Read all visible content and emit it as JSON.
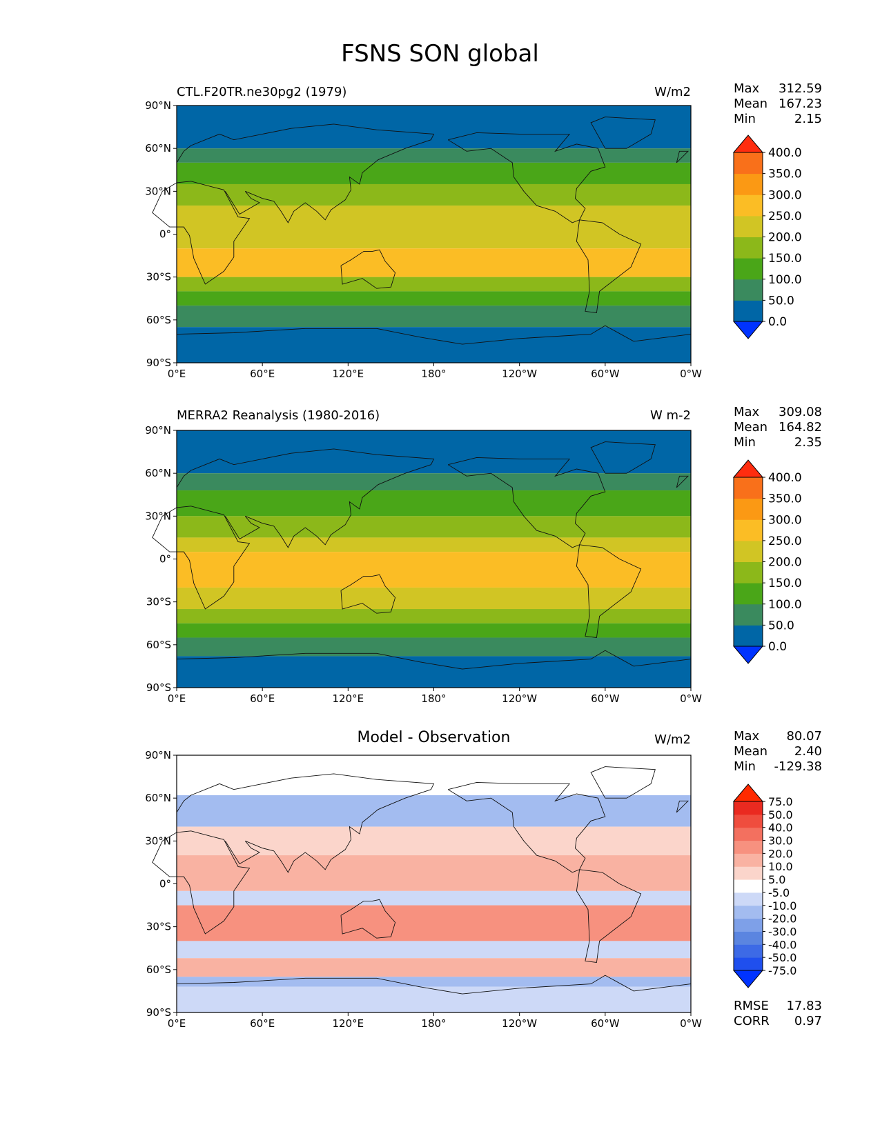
{
  "title": "FSNS SON global",
  "lat_ticks": [
    "90°N",
    "60°N",
    "30°N",
    "0°",
    "30°S",
    "60°S",
    "90°S"
  ],
  "lon_ticks": [
    "0°E",
    "60°E",
    "120°E",
    "180°",
    "120°W",
    "60°W",
    "0°W"
  ],
  "chart_data": [
    {
      "type": "heatmap",
      "name": "test",
      "title_left": "CTL.F20TR.ne30pg2 (1979)",
      "title_right": "W/m2",
      "stats": [
        [
          "Max",
          "312.59"
        ],
        [
          "Mean",
          "167.23"
        ],
        [
          "Min",
          "2.15"
        ]
      ],
      "colorbar": {
        "levels": [
          "0.0",
          "50.0",
          "100.0",
          "150.0",
          "200.0",
          "250.0",
          "300.0",
          "350.0",
          "400.0"
        ],
        "colors": [
          "#0033ff",
          "#0066a6",
          "#3a8a5e",
          "#4aa618",
          "#8cb81a",
          "#d1c524",
          "#fbbd25",
          "#fb9914",
          "#f9701a",
          "#ff2d0f"
        ]
      },
      "bands": [
        {
          "lat": [
            90,
            60
          ],
          "value": 25
        },
        {
          "lat": [
            60,
            50
          ],
          "value": 75
        },
        {
          "lat": [
            50,
            35
          ],
          "value": 125
        },
        {
          "lat": [
            35,
            20
          ],
          "value": 175
        },
        {
          "lat": [
            20,
            -10
          ],
          "value": 225
        },
        {
          "lat": [
            -10,
            -30
          ],
          "value": 255
        },
        {
          "lat": [
            -30,
            -40
          ],
          "value": 175
        },
        {
          "lat": [
            -40,
            -50
          ],
          "value": 125
        },
        {
          "lat": [
            -50,
            -65
          ],
          "value": 75
        },
        {
          "lat": [
            -65,
            -90
          ],
          "value": 25
        }
      ]
    },
    {
      "type": "heatmap",
      "name": "reference",
      "title_left": "MERRA2 Reanalysis (1980-2016)",
      "title_right": "W m-2",
      "stats": [
        [
          "Max",
          "309.08"
        ],
        [
          "Mean",
          "164.82"
        ],
        [
          "Min",
          "2.35"
        ]
      ],
      "colorbar": {
        "levels": [
          "0.0",
          "50.0",
          "100.0",
          "150.0",
          "200.0",
          "250.0",
          "300.0",
          "350.0",
          "400.0"
        ],
        "colors": [
          "#0033ff",
          "#0066a6",
          "#3a8a5e",
          "#4aa618",
          "#8cb81a",
          "#d1c524",
          "#fbbd25",
          "#fb9914",
          "#f9701a",
          "#ff2d0f"
        ]
      },
      "bands": [
        {
          "lat": [
            90,
            60
          ],
          "value": 25
        },
        {
          "lat": [
            60,
            48
          ],
          "value": 75
        },
        {
          "lat": [
            48,
            30
          ],
          "value": 125
        },
        {
          "lat": [
            30,
            15
          ],
          "value": 175
        },
        {
          "lat": [
            15,
            5
          ],
          "value": 200
        },
        {
          "lat": [
            5,
            -20
          ],
          "value": 255
        },
        {
          "lat": [
            -20,
            -35
          ],
          "value": 210
        },
        {
          "lat": [
            -35,
            -45
          ],
          "value": 165
        },
        {
          "lat": [
            -45,
            -55
          ],
          "value": 125
        },
        {
          "lat": [
            -55,
            -68
          ],
          "value": 75
        },
        {
          "lat": [
            -68,
            -90
          ],
          "value": 25
        }
      ]
    },
    {
      "type": "heatmap",
      "name": "difference",
      "title_center": "Model - Observation",
      "title_right": "W/m2",
      "stats": [
        [
          "Max",
          "80.07"
        ],
        [
          "Mean",
          "2.40"
        ],
        [
          "Min",
          "-129.38"
        ]
      ],
      "extra_stats": [
        [
          "RMSE",
          "17.83"
        ],
        [
          "CORR",
          "0.97"
        ]
      ],
      "colorbar": {
        "levels": [
          "-75.0",
          "-50.0",
          "-40.0",
          "-30.0",
          "-20.0",
          "-10.0",
          "-5.0",
          "5.0",
          "10.0",
          "20.0",
          "30.0",
          "40.0",
          "50.0",
          "75.0"
        ],
        "colors": [
          "#0033ff",
          "#1f4fee",
          "#3d6ae6",
          "#5b85e0",
          "#7ea0e8",
          "#a3bcf0",
          "#cdd9f7",
          "#ffffff",
          "#fbd5cb",
          "#f9b2a2",
          "#f7917f",
          "#f3705f",
          "#ef4d3e",
          "#ea2a20",
          "#ff2a00"
        ]
      },
      "bands": [
        {
          "lat": [
            90,
            62
          ],
          "value": 0
        },
        {
          "lat": [
            62,
            40
          ],
          "value": -12
        },
        {
          "lat": [
            40,
            20
          ],
          "value": 8
        },
        {
          "lat": [
            20,
            -5
          ],
          "value": 14
        },
        {
          "lat": [
            -5,
            -15
          ],
          "value": -7
        },
        {
          "lat": [
            -15,
            -40
          ],
          "value": 22
        },
        {
          "lat": [
            -40,
            -52
          ],
          "value": -8
        },
        {
          "lat": [
            -52,
            -65
          ],
          "value": 18
        },
        {
          "lat": [
            -65,
            -72
          ],
          "value": -15
        },
        {
          "lat": [
            -72,
            -90
          ],
          "value": -7
        }
      ]
    }
  ]
}
